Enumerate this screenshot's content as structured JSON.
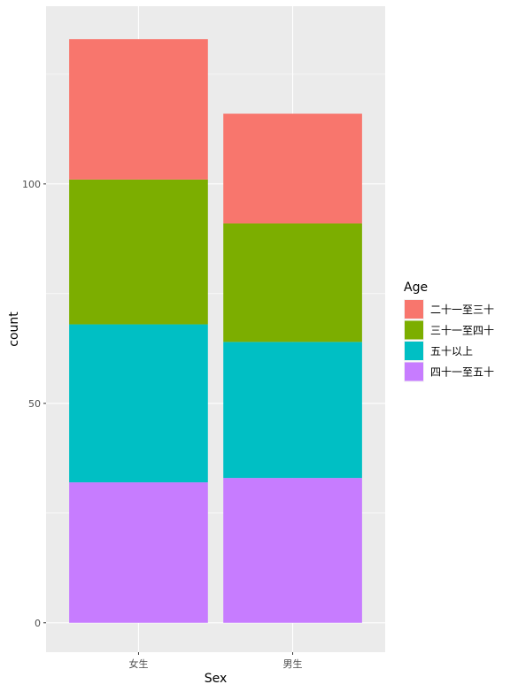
{
  "chart_data": {
    "type": "bar",
    "stacked": true,
    "xlabel": "Sex",
    "ylabel": "count",
    "categories": [
      "女生",
      "男生"
    ],
    "yticks": [
      0,
      50,
      100
    ],
    "ylim": [
      -6.7,
      140.5
    ],
    "grid": true,
    "legend_title": "Age",
    "legend_position": "right",
    "series": [
      {
        "name": "四十一至五十",
        "color": "#C77CFF",
        "values": [
          32,
          33
        ]
      },
      {
        "name": "五十以上",
        "color": "#00BFC4",
        "values": [
          36,
          31
        ]
      },
      {
        "name": "三十一至四十",
        "color": "#7CAE00",
        "values": [
          33,
          27
        ]
      },
      {
        "name": "二十一至三十",
        "color": "#F8766D",
        "values": [
          32,
          25
        ]
      }
    ],
    "legend_order": [
      "二十一至三十",
      "三十一至四十",
      "五十以上",
      "四十一至五十"
    ]
  }
}
